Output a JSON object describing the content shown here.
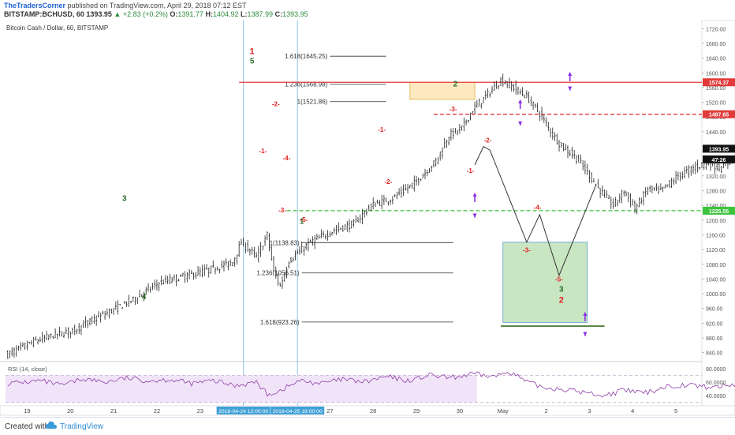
{
  "header": {
    "author": "TheTradersCorner",
    "published": "published on TradingView.com, April 29, 2018 07:12 EST",
    "symbol": "BITSTAMP:BCHUSD, 60",
    "last": "1393.95",
    "change": "▲ +2.83 (+0.2%)",
    "open_label": "O:",
    "open": "1391.77",
    "high_label": "H:",
    "high": "1404.92",
    "low_label": "L:",
    "low": "1387.99",
    "close_label": "C:",
    "close": "1393.95"
  },
  "footer": {
    "created_with": "Created with",
    "brand": "TradingView"
  },
  "colors": {
    "candle": "#222222",
    "resistance": "#e23a3a",
    "support": "#3cc43c",
    "wave_red": "#e02020",
    "wave_green": "#2a6e2a",
    "arrow": "#8a2be2",
    "target_box": "#c9e6c3",
    "fib_box": "#fde8bf",
    "rsi_fill": "#f1e4f8",
    "rsi_line": "#8e3da8"
  },
  "chart_data": {
    "type": "candlestick",
    "title": "Bitcoin Cash / Dollar, 60, BITSTAMP",
    "price_axis": {
      "ticks": [
        "1720.00",
        "1680.00",
        "1640.00",
        "1600.00",
        "1560.00",
        "1520.00",
        "1480.00",
        "1440.00",
        "1400.00",
        "1360.00",
        "1320.00",
        "1280.00",
        "1240.00",
        "1200.00",
        "1160.00",
        "1120.00",
        "1080.00",
        "1040.00",
        "1000.00",
        "960.00",
        "920.00",
        "880.00",
        "840.00"
      ],
      "range": [
        820,
        1740
      ]
    },
    "time_axis": {
      "labels": [
        {
          "t": 0,
          "text": "19"
        },
        {
          "t": 1,
          "text": "20"
        },
        {
          "t": 2,
          "text": "21"
        },
        {
          "t": 3,
          "text": "22"
        },
        {
          "t": 4,
          "text": "23"
        },
        {
          "t": 7,
          "text": "27"
        },
        {
          "t": 8,
          "text": "28"
        },
        {
          "t": 9,
          "text": "29"
        },
        {
          "t": 10,
          "text": "30"
        },
        {
          "t": 11,
          "text": "May"
        },
        {
          "t": 12,
          "text": "2"
        },
        {
          "t": 13,
          "text": "3"
        },
        {
          "t": 14,
          "text": "4"
        },
        {
          "t": 15,
          "text": "5"
        }
      ],
      "range": [
        -0.5,
        15.6
      ],
      "highlights": [
        {
          "t": 5.0,
          "text": "2018-04-24 12:00:00"
        },
        {
          "t": 6.25,
          "text": "2018-04-25 18:00:00"
        }
      ]
    },
    "price_labels": [
      {
        "price": 1574.37,
        "text": "1574.37",
        "color": "#e23a3a"
      },
      {
        "price": 1487.65,
        "text": "1487.65",
        "color": "#e23a3a"
      },
      {
        "price": 1393.95,
        "text": "1393.95",
        "color": "#111111"
      },
      {
        "price": 1365,
        "text": "47:26",
        "color": "#111111"
      },
      {
        "price": 1225.55,
        "text": "1225.55",
        "color": "#3cc43c"
      }
    ],
    "levels": [
      {
        "name": "resistance",
        "price": 1574.37,
        "t0": 4.9,
        "t1": 15.6,
        "style": "solid",
        "color": "#e23a3a"
      },
      {
        "name": "resistance-2",
        "price": 1487.65,
        "t0": 9.4,
        "t1": 15.6,
        "style": "dashed",
        "color": "#e23a3a"
      },
      {
        "name": "support",
        "price": 1225.55,
        "t0": 6.0,
        "t1": 15.6,
        "style": "dashed",
        "color": "#3cc43c"
      }
    ],
    "fib_lines": [
      {
        "text": "1.618(1645.25)",
        "price": 1645.25,
        "t0": 7.0,
        "t1": 8.3
      },
      {
        "text": "1.236(1568.98)",
        "price": 1568.98,
        "t0": 7.0,
        "t1": 8.3
      },
      {
        "text": "1(1521.86)",
        "price": 1521.86,
        "t0": 7.0,
        "t1": 8.3
      },
      {
        "text": "1(1138.83)",
        "price": 1138.83,
        "t0": 6.35,
        "t1": 9.85
      },
      {
        "text": "1.236(1056.51)",
        "price": 1056.51,
        "t0": 6.35,
        "t1": 9.85
      },
      {
        "text": "1.618(923.26)",
        "price": 923.26,
        "t0": 6.35,
        "t1": 9.85
      }
    ],
    "boxes": [
      {
        "name": "fib-target-box",
        "t0": 8.85,
        "t1": 10.35,
        "p0": 1574,
        "p1": 1528,
        "fill": "#fde8bf",
        "stroke": "#e0b040"
      },
      {
        "name": "wave-3-target-box",
        "t0": 11.0,
        "t1": 12.95,
        "p0": 1140,
        "p1": 922,
        "fill": "#c9e6c3",
        "stroke": "#5b9bd5"
      }
    ],
    "wave_labels": [
      {
        "text": "1",
        "t": 5.2,
        "p": 1651,
        "color": "#e02020",
        "size": 11
      },
      {
        "text": "5",
        "t": 5.2,
        "p": 1625,
        "color": "#2a6e2a",
        "size": 10
      },
      {
        "text": "3",
        "t": 2.25,
        "p": 1252,
        "color": "#2a6e2a",
        "size": 10
      },
      {
        "text": "4",
        "t": 2.7,
        "p": 985,
        "color": "#2a6e2a",
        "size": 10
      },
      {
        "text": "1",
        "t": 6.35,
        "p": 1190,
        "color": "#2a6e2a",
        "size": 10
      },
      {
        "text": "2",
        "t": 9.9,
        "p": 1563,
        "color": "#2a6e2a",
        "size": 10
      },
      {
        "text": "-2-",
        "t": 5.75,
        "p": 1510,
        "color": "#e02020",
        "size": 8
      },
      {
        "text": "-1-",
        "t": 5.45,
        "p": 1382,
        "color": "#e02020",
        "size": 8
      },
      {
        "text": "-4-",
        "t": 6.0,
        "p": 1363,
        "color": "#e02020",
        "size": 8
      },
      {
        "text": "-3-",
        "t": 5.9,
        "p": 1221,
        "color": "#e02020",
        "size": 8
      },
      {
        "text": "-5-",
        "t": 6.4,
        "p": 1195,
        "color": "#e02020",
        "size": 8
      },
      {
        "text": "-1-",
        "t": 8.2,
        "p": 1440,
        "color": "#e02020",
        "size": 8
      },
      {
        "text": "-2-",
        "t": 8.35,
        "p": 1298,
        "color": "#e02020",
        "size": 8
      },
      {
        "text": "-3-",
        "t": 9.85,
        "p": 1496,
        "color": "#e02020",
        "size": 8
      },
      {
        "text": "-2-",
        "t": 10.65,
        "p": 1411,
        "color": "#e02020",
        "size": 8
      },
      {
        "text": "-1-",
        "t": 10.25,
        "p": 1328,
        "color": "#e02020",
        "size": 8
      },
      {
        "text": "-4-",
        "t": 11.8,
        "p": 1228,
        "color": "#e02020",
        "size": 8
      },
      {
        "text": "-3-",
        "t": 11.55,
        "p": 1113,
        "color": "#e02020",
        "size": 8
      },
      {
        "text": "-5-",
        "t": 12.3,
        "p": 1033,
        "color": "#e02020",
        "size": 8
      },
      {
        "text": "3",
        "t": 12.35,
        "p": 1005,
        "color": "#2a6e2a",
        "size": 10
      },
      {
        "text": "2",
        "t": 12.35,
        "p": 975,
        "color": "#e02020",
        "size": 11
      }
    ],
    "projection": {
      "t": [
        10.35,
        10.55,
        10.7,
        11.55,
        11.85,
        12.3,
        13.15
      ],
      "p": [
        1350,
        1400,
        1390,
        1140,
        1215,
        1050,
        1295
      ]
    },
    "arrows": [
      {
        "t": 12.55,
        "p": 1590,
        "dir": "up"
      },
      {
        "t": 12.55,
        "p": 1565,
        "dir": "down"
      },
      {
        "t": 11.4,
        "p": 1515,
        "dir": "up"
      },
      {
        "t": 11.4,
        "p": 1470,
        "dir": "down"
      },
      {
        "t": 10.35,
        "p": 1262,
        "dir": "up"
      },
      {
        "t": 10.35,
        "p": 1220,
        "dir": "down"
      },
      {
        "t": 12.9,
        "p": 938,
        "dir": "up"
      },
      {
        "t": 12.9,
        "p": 898,
        "dir": "down"
      }
    ],
    "target_base": {
      "t0": 10.95,
      "t1": 13.35,
      "price": 912
    },
    "candles": {
      "start_t": -0.45,
      "step": 0.05,
      "waypoints": [
        [
          0,
          835
        ],
        [
          12,
          870
        ],
        [
          20,
          885
        ],
        [
          30,
          900
        ],
        [
          40,
          930
        ],
        [
          58,
          985
        ],
        [
          70,
          1030
        ],
        [
          90,
          1060
        ],
        [
          104,
          1085
        ],
        [
          108,
          1140
        ],
        [
          115,
          1100
        ],
        [
          120,
          1160
        ],
        [
          123,
          1060
        ],
        [
          126,
          1020
        ],
        [
          130,
          1090
        ],
        [
          140,
          1140
        ],
        [
          150,
          1170
        ],
        [
          160,
          1190
        ],
        [
          168,
          1240
        ],
        [
          178,
          1260
        ],
        [
          188,
          1300
        ],
        [
          198,
          1360
        ],
        [
          204,
          1430
        ],
        [
          210,
          1450
        ],
        [
          215,
          1500
        ],
        [
          220,
          1530
        ],
        [
          228,
          1580
        ],
        [
          234,
          1560
        ],
        [
          240,
          1535
        ],
        [
          246,
          1490
        ],
        [
          250,
          1450
        ],
        [
          256,
          1400
        ],
        [
          262,
          1375
        ],
        [
          268,
          1330
        ],
        [
          274,
          1280
        ],
        [
          280,
          1240
        ],
        [
          285,
          1280
        ],
        [
          290,
          1230
        ],
        [
          296,
          1285
        ],
        [
          302,
          1280
        ],
        [
          310,
          1320
        ],
        [
          318,
          1345
        ],
        [
          324,
          1355
        ],
        [
          330,
          1340
        ],
        [
          336,
          1370
        ],
        [
          340,
          1410
        ],
        [
          346,
          1400
        ],
        [
          352,
          1395
        ],
        [
          358,
          1375
        ],
        [
          364,
          1395
        ],
        [
          368,
          1370
        ],
        [
          374,
          1340
        ],
        [
          380,
          1345
        ],
        [
          386,
          1365
        ],
        [
          392,
          1380
        ],
        [
          398,
          1385
        ],
        [
          404,
          1395
        ],
        [
          410,
          1380
        ],
        [
          416,
          1400
        ],
        [
          420,
          1440
        ],
        [
          424,
          1490
        ],
        [
          428,
          1445
        ],
        [
          432,
          1420
        ],
        [
          436,
          1393.95
        ]
      ]
    },
    "rsi": {
      "label": "RSI (14, close)",
      "ticks": [
        "80.0000",
        "60.0000",
        "40.0000"
      ],
      "range": [
        25,
        88
      ],
      "bands": [
        70,
        30
      ],
      "waypoints": [
        [
          0,
          58
        ],
        [
          15,
          62
        ],
        [
          25,
          55
        ],
        [
          35,
          65
        ],
        [
          45,
          60
        ],
        [
          55,
          66
        ],
        [
          65,
          62
        ],
        [
          75,
          64
        ],
        [
          85,
          58
        ],
        [
          95,
          62
        ],
        [
          105,
          55
        ],
        [
          115,
          60
        ],
        [
          120,
          42
        ],
        [
          125,
          46
        ],
        [
          135,
          62
        ],
        [
          145,
          58
        ],
        [
          155,
          64
        ],
        [
          165,
          60
        ],
        [
          175,
          68
        ],
        [
          185,
          62
        ],
        [
          195,
          70
        ],
        [
          205,
          66
        ],
        [
          215,
          72
        ],
        [
          225,
          68
        ],
        [
          232,
          76
        ],
        [
          240,
          60
        ],
        [
          248,
          52
        ],
        [
          256,
          50
        ],
        [
          266,
          45
        ],
        [
          276,
          40
        ],
        [
          285,
          48
        ],
        [
          295,
          44
        ],
        [
          305,
          54
        ],
        [
          315,
          56
        ],
        [
          325,
          52
        ],
        [
          335,
          56
        ],
        [
          345,
          60
        ],
        [
          355,
          55
        ],
        [
          365,
          58
        ],
        [
          372,
          48
        ],
        [
          380,
          54
        ],
        [
          390,
          56
        ],
        [
          400,
          52
        ],
        [
          410,
          58
        ],
        [
          420,
          52
        ],
        [
          425,
          70
        ],
        [
          430,
          56
        ],
        [
          436,
          50
        ]
      ]
    }
  }
}
